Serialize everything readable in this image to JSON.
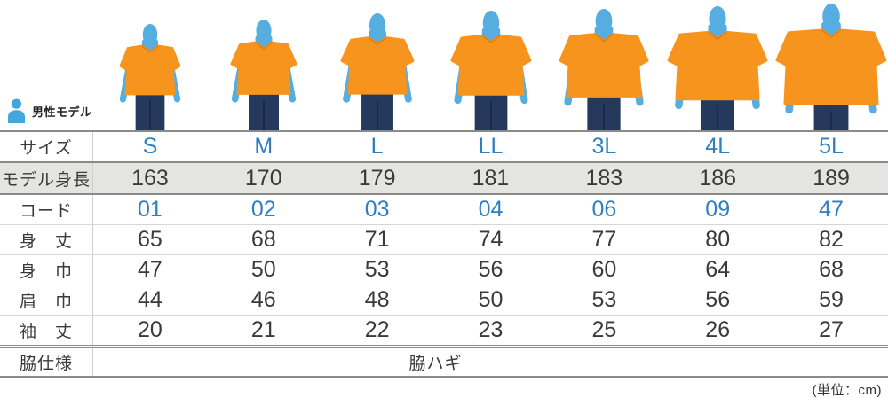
{
  "colors": {
    "accent_blue": "#2e7fc1",
    "text_dark": "#3a3a3a",
    "highlight_row_bg": "#e4e4e2",
    "border_dark": "#8a8a88",
    "border_light": "#d6d6d4",
    "model_skin_blue": "#55ade0",
    "shirt_orange": "#f7941d",
    "jeans_navy": "#24395c"
  },
  "model_strip": {
    "badge_label": "男性モデル",
    "badge_icon": "male-model-icon"
  },
  "table": {
    "rows": [
      {
        "key": "size",
        "label": "サイズ",
        "values": [
          "S",
          "M",
          "L",
          "LL",
          "3L",
          "4L",
          "5L"
        ],
        "accent": true
      },
      {
        "key": "model_height",
        "label": "モデル身長",
        "values": [
          "163",
          "170",
          "179",
          "181",
          "183",
          "186",
          "189"
        ],
        "highlight": true
      },
      {
        "key": "code",
        "label": "コード",
        "values": [
          "01",
          "02",
          "03",
          "04",
          "06",
          "09",
          "47"
        ],
        "accent": true
      },
      {
        "key": "body_length",
        "label": "身　丈",
        "values": [
          "65",
          "68",
          "71",
          "74",
          "77",
          "80",
          "82"
        ]
      },
      {
        "key": "body_width",
        "label": "身　巾",
        "values": [
          "47",
          "50",
          "53",
          "56",
          "60",
          "64",
          "68"
        ]
      },
      {
        "key": "shoulder_width",
        "label": "肩　巾",
        "values": [
          "44",
          "46",
          "48",
          "50",
          "53",
          "56",
          "59"
        ]
      },
      {
        "key": "sleeve_length",
        "label": "袖　丈",
        "values": [
          "20",
          "21",
          "22",
          "23",
          "25",
          "26",
          "27"
        ]
      },
      {
        "key": "side_spec",
        "label": "脇仕様",
        "merged": "脇ハギ"
      }
    ]
  },
  "unit_note": "(単位：cm)"
}
